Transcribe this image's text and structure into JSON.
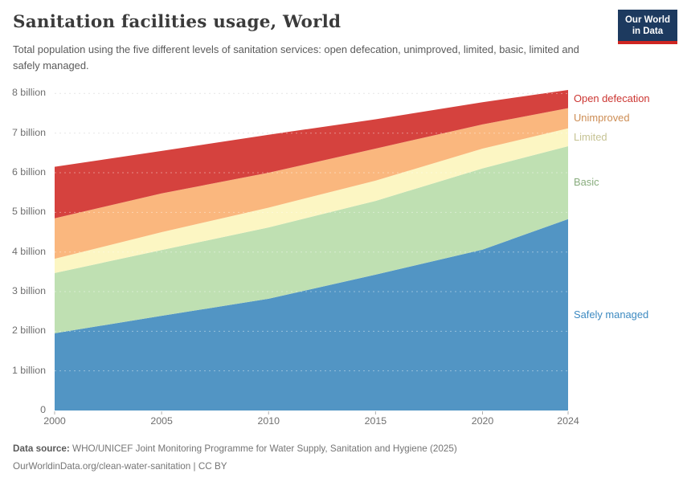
{
  "header": {
    "title": "Sanitation facilities usage, World",
    "subtitle": "Total population using the five different levels of sanitation services: open defecation, unimproved, limited, basic, limited and safely managed.",
    "logo": {
      "line1": "Our World",
      "line2": "in Data",
      "bg_color": "#1d3a5f",
      "bar_color": "#cf2622"
    }
  },
  "chart_data": {
    "type": "area",
    "stacked": true,
    "title": "Sanitation facilities usage, World",
    "unit": "billion people",
    "xlabel": "",
    "ylabel": "",
    "xlim": [
      2000,
      2024
    ],
    "ylim": [
      0,
      8.2
    ],
    "grid": "dashed-horizontal",
    "legend_position": "right-direct-labels",
    "x": [
      2000,
      2005,
      2010,
      2015,
      2020,
      2024
    ],
    "xticks": [
      "2000",
      "2005",
      "2010",
      "2015",
      "2020",
      "2024"
    ],
    "yticks": [
      "0",
      "1 billion",
      "2 billion",
      "3 billion",
      "4 billion",
      "5 billion",
      "6 billion",
      "7 billion",
      "8 billion"
    ],
    "series": [
      {
        "name": "Safely managed",
        "fill": "#5295c4",
        "label_color": "#3d8ac1",
        "values": [
          1.95,
          2.39,
          2.82,
          3.43,
          4.06,
          4.83
        ]
      },
      {
        "name": "Basic",
        "fill": "#bfe0b2",
        "label_color": "#89ad7e",
        "values": [
          1.52,
          1.66,
          1.8,
          1.86,
          2.05,
          1.84
        ]
      },
      {
        "name": "Limited",
        "fill": "#fcf6c3",
        "label_color": "#c6c394",
        "values": [
          0.36,
          0.45,
          0.5,
          0.51,
          0.5,
          0.45
        ]
      },
      {
        "name": "Unimproved",
        "fill": "#fab77e",
        "label_color": "#cd8d54",
        "values": [
          1.02,
          0.98,
          0.88,
          0.81,
          0.61,
          0.51
        ]
      },
      {
        "name": "Open defecation",
        "fill": "#d5423e",
        "label_color": "#cc3632",
        "values": [
          1.3,
          1.07,
          0.96,
          0.74,
          0.56,
          0.46
        ]
      }
    ]
  },
  "footer": {
    "source_label": "Data source:",
    "source_text": " WHO/UNICEF Joint Monitoring Programme for Water Supply, Sanitation and Hygiene (2025)",
    "link_line": "OurWorldinData.org/clean-water-sanitation | CC BY"
  }
}
